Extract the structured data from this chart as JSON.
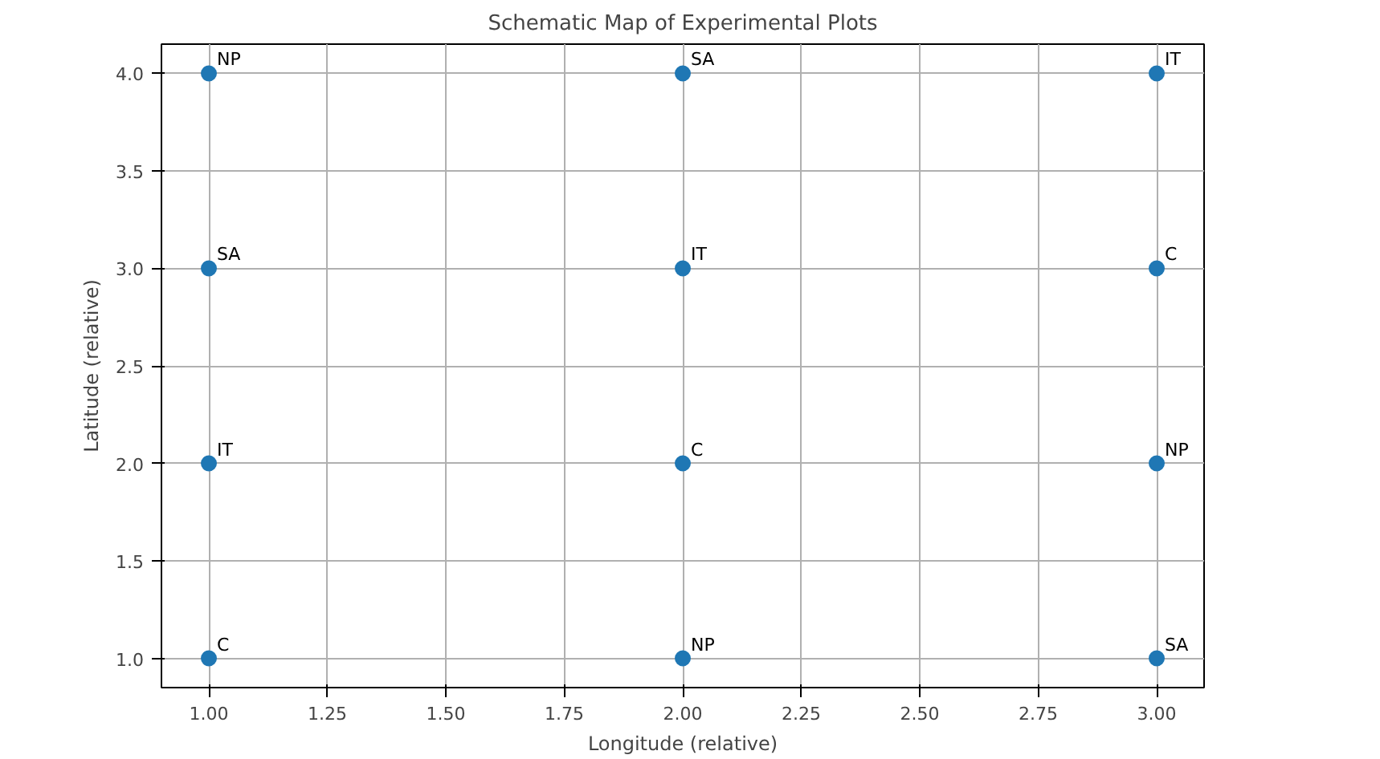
{
  "chart_data": {
    "type": "scatter",
    "title": "Schematic Map of Experimental Plots",
    "xlabel": "Longitude (relative)",
    "ylabel": "Latitude (relative)",
    "x": [
      1,
      1,
      1,
      1,
      2,
      2,
      2,
      2,
      3,
      3,
      3,
      3
    ],
    "values": [
      4,
      3,
      2,
      1,
      4,
      3,
      2,
      1,
      4,
      3,
      2,
      1
    ],
    "color": "#1f77b4",
    "marker": "circle",
    "grid": true,
    "xlim": [
      0.9,
      3.1
    ],
    "ylim": [
      0.85,
      4.15
    ],
    "xticks": [
      {
        "value": 1,
        "label": "1.00"
      },
      {
        "value": 1.25,
        "label": "1.25"
      },
      {
        "value": 1.5,
        "label": "1.50"
      },
      {
        "value": 1.75,
        "label": "1.75"
      },
      {
        "value": 2,
        "label": "2.00"
      },
      {
        "value": 2.25,
        "label": "2.25"
      },
      {
        "value": 2.5,
        "label": "2.50"
      },
      {
        "value": 2.75,
        "label": "2.75"
      },
      {
        "value": 3,
        "label": "3.00"
      }
    ],
    "yticks": [
      {
        "value": 1,
        "label": "1.0"
      },
      {
        "value": 1.5,
        "label": "1.5"
      },
      {
        "value": 2,
        "label": "2.0"
      },
      {
        "value": 2.5,
        "label": "2.5"
      },
      {
        "value": 3,
        "label": "3.0"
      },
      {
        "value": 3.5,
        "label": "3.5"
      },
      {
        "value": 4,
        "label": "4.0"
      }
    ],
    "annotations": [
      {
        "text": "NP",
        "x": 1,
        "y": 4
      },
      {
        "text": "SA",
        "x": 1,
        "y": 3
      },
      {
        "text": "IT",
        "x": 1,
        "y": 2
      },
      {
        "text": "C",
        "x": 1,
        "y": 1
      },
      {
        "text": "SA",
        "x": 2,
        "y": 4
      },
      {
        "text": "IT",
        "x": 2,
        "y": 3
      },
      {
        "text": "C",
        "x": 2,
        "y": 2
      },
      {
        "text": "NP",
        "x": 2,
        "y": 1
      },
      {
        "text": "IT",
        "x": 3,
        "y": 4
      },
      {
        "text": "C",
        "x": 3,
        "y": 3
      },
      {
        "text": "NP",
        "x": 3,
        "y": 2
      },
      {
        "text": "SA",
        "x": 3,
        "y": 1
      }
    ]
  }
}
